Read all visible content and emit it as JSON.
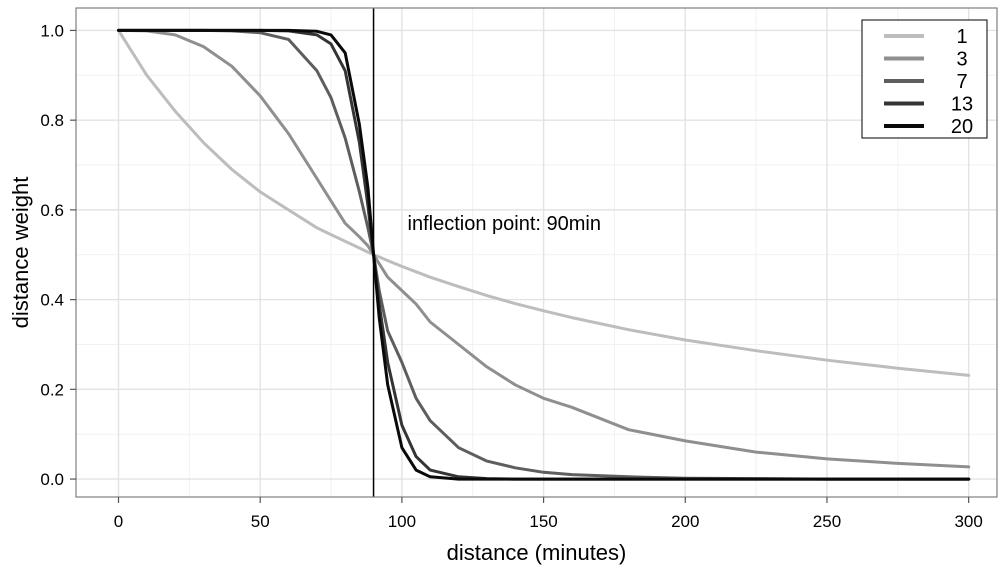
{
  "chart_data": {
    "type": "line",
    "xlabel": "distance (minutes)",
    "ylabel": "distance weight",
    "xlim": [
      -15,
      310
    ],
    "ylim": [
      -0.04,
      1.05
    ],
    "x_ticks": [
      0,
      50,
      100,
      150,
      200,
      250,
      300
    ],
    "y_ticks": [
      0.0,
      0.2,
      0.4,
      0.6,
      0.8,
      1.0
    ],
    "x_tick_labels": [
      "0",
      "50",
      "100",
      "150",
      "200",
      "250",
      "300"
    ],
    "y_tick_labels": [
      "0.0",
      "0.2",
      "0.4",
      "0.6",
      "0.8",
      "1.0"
    ],
    "grid": true,
    "legend_position": "top-right",
    "annotation": {
      "text": "inflection point: 90min",
      "x": 102,
      "y": 0.555
    },
    "vline_x": 90,
    "x": [
      0,
      10,
      20,
      30,
      40,
      50,
      60,
      70,
      75,
      80,
      85,
      88,
      90,
      92,
      95,
      100,
      105,
      110,
      120,
      130,
      140,
      150,
      160,
      180,
      200,
      225,
      250,
      275,
      300
    ],
    "series": [
      {
        "name": "1",
        "color": "#bdbdbd",
        "values": [
          1.0,
          0.9,
          0.82,
          0.75,
          0.69,
          0.64,
          0.6,
          0.56,
          0.545,
          0.53,
          0.515,
          0.506,
          0.5,
          0.495,
          0.487,
          0.474,
          0.462,
          0.45,
          0.429,
          0.409,
          0.391,
          0.375,
          0.36,
          0.333,
          0.31,
          0.286,
          0.265,
          0.247,
          0.231
        ]
      },
      {
        "name": "3",
        "color": "#8f8f8f",
        "values": [
          1.0,
          0.999,
          0.99,
          0.964,
          0.92,
          0.854,
          0.77,
          0.67,
          0.62,
          0.57,
          0.54,
          0.52,
          0.5,
          0.48,
          0.45,
          0.42,
          0.39,
          0.35,
          0.3,
          0.25,
          0.21,
          0.18,
          0.16,
          0.11,
          0.085,
          0.06,
          0.045,
          0.035,
          0.027
        ]
      },
      {
        "name": "7",
        "color": "#5e5e5e",
        "values": [
          1.0,
          1.0,
          1.0,
          1.0,
          0.999,
          0.995,
          0.98,
          0.91,
          0.85,
          0.76,
          0.64,
          0.56,
          0.5,
          0.42,
          0.33,
          0.26,
          0.18,
          0.13,
          0.07,
          0.04,
          0.025,
          0.015,
          0.01,
          0.005,
          0.002,
          0.001,
          0.0,
          0.0,
          0.0
        ]
      },
      {
        "name": "13",
        "color": "#353535",
        "values": [
          1.0,
          1.0,
          1.0,
          1.0,
          1.0,
          1.0,
          0.999,
          0.99,
          0.97,
          0.91,
          0.75,
          0.61,
          0.5,
          0.39,
          0.26,
          0.12,
          0.05,
          0.02,
          0.005,
          0.001,
          0.0,
          0.0,
          0.0,
          0.0,
          0.0,
          0.0,
          0.0,
          0.0,
          0.0
        ]
      },
      {
        "name": "20",
        "color": "#0a0a0a",
        "values": [
          1.0,
          1.0,
          1.0,
          1.0,
          1.0,
          1.0,
          1.0,
          0.998,
          0.99,
          0.95,
          0.79,
          0.65,
          0.5,
          0.36,
          0.21,
          0.07,
          0.02,
          0.005,
          0.0,
          0.0,
          0.0,
          0.0,
          0.0,
          0.0,
          0.0,
          0.0,
          0.0,
          0.0,
          0.0
        ]
      }
    ]
  }
}
